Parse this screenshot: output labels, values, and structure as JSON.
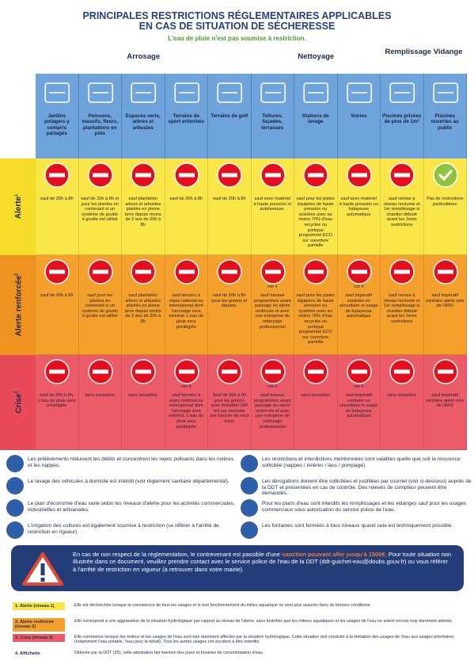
{
  "header": {
    "title_line1": "PRINCIPALES RESTRICTIONS RÉGLEMENTAIRES APPLICABLES",
    "title_line2": "EN CAS DE SITUATION DE SÉCHERESSE",
    "subtitle": "L'eau de pluie n'est pas soumise à restriction."
  },
  "groups": [
    {
      "label": "Arrosage",
      "span": [
        0,
        4
      ]
    },
    {
      "label": "Nettoyage",
      "span": [
        5,
        7
      ]
    },
    {
      "label": "Remplissage Vidange",
      "span": [
        8,
        9
      ]
    }
  ],
  "columns": [
    "Jardins potagers y compris partagés",
    "Pelouses, massifs, fleurs, plantations en pots",
    "Espaces verts, arbres et arbustes",
    "Terrains de sport enherbés",
    "Terrains de golf",
    "Toitures, façades, terrasses",
    "Stations de lavage",
    "Voiries",
    "Piscines privées de plus de 1m³",
    "Piscines ouvertes au public"
  ],
  "levels": [
    {
      "label": "Alerte",
      "sup": "1",
      "color": "#fbe64a",
      "side": "#f6dc2a",
      "cells": [
        {
          "status": "forbidden",
          "text": "sauf de 20h à 8h"
        },
        {
          "status": "forbidden",
          "text": "sauf de 20h à 8h et pour les plantes en contenant si un système de goutte à goutte est utilisé"
        },
        {
          "status": "forbidden",
          "text": "sauf plantation arbres et arbustes plantés en pleine terre depuis moins de 2 ans de 20h à 8h"
        },
        {
          "status": "forbidden",
          "text": "sauf de 20h à 8h"
        },
        {
          "status": "forbidden",
          "text": "sauf de 20h à 8h"
        },
        {
          "status": "forbidden",
          "text": "sauf avec matériel à haute pression et autolaveuse."
        },
        {
          "status": "forbidden",
          "text": "sauf pour les pistes équipées de haute pression ou système avec au moins 70% d'eau recyclée ou portique programmé ECO sur ouverture partielle"
        },
        {
          "status": "forbidden",
          "text": "sauf avec matériel à haute pression ou balayeuse automatique"
        },
        {
          "status": "forbidden",
          "text": "sauf remise à niveau nocturne et 1er remplissage si chantier débuté avant les 1ères restrictions"
        },
        {
          "status": "allowed",
          "text": "Pas de restrictions particulières"
        }
      ]
    },
    {
      "label": "Alerte renforcée",
      "sup": "2",
      "color": "#f4a02c",
      "side": "#ef9220",
      "cells": [
        {
          "status": "forbidden",
          "text": "sauf de 20h à 8h"
        },
        {
          "status": "forbidden",
          "text": "sauf pour les plantes en contenant si un système de goutte à goutte est utilisé"
        },
        {
          "status": "forbidden",
          "text": "sauf plantation arbres et arbustes plantés en pleine terre depuis moins de 2 ans de 20h à 8h"
        },
        {
          "status": "forbidden",
          "text": "sauf terrains à enjeu national ou international dont l'arrosage sera minimal. L'eau de pluie sera privilégiée"
        },
        {
          "status": "forbidden",
          "text": "sauf de 20h à 8h pour les greens et départs."
        },
        {
          "status": "forbidden",
          "note": "voir 4",
          "text": "sauf travaux programmés avant passage en alerte renforcée et avec une entreprise de nettoyage professionnel"
        },
        {
          "status": "forbidden",
          "text": "sauf pour les pistes équipées de haute pression ou système avec au moins 70% d'eau recyclée ou portique programmé ECO sur ouverture partielle"
        },
        {
          "status": "forbidden",
          "note": "voir 4",
          "text": "sauf impératif sanitaire ou sécuritaire et usage de balayeuse automatique"
        },
        {
          "status": "forbidden",
          "text": "sauf remise à niveau nocturne et 1er remplissage si chantier débuté avant les 1ères restrictions"
        },
        {
          "status": "forbidden",
          "text": "sauf impératif sanitaire après avis de l'ARS"
        }
      ]
    },
    {
      "label": "Crise",
      "sup": "3",
      "color": "#ec5b68",
      "side": "#e84a5a",
      "cells": [
        {
          "status": "forbidden",
          "text": "sauf de 20h à 8h. L'eau de pluie sera privilégiée"
        },
        {
          "status": "forbidden",
          "text": "sans exception"
        },
        {
          "status": "forbidden",
          "text": "sans exception"
        },
        {
          "status": "forbidden",
          "note": "voir 4",
          "text": "sauf terrains à enjeu national ou international dont l'arrosage sera minimal. L'eau de pluie sera privilégiée"
        },
        {
          "status": "forbidden",
          "text": "Sauf de 20h à 8h pour les greens avec limitation 330 m3 par semaine par tranche de neuf trous"
        },
        {
          "status": "forbidden",
          "note": "voir 4",
          "text": "sauf travaux programmés avant passage en alerte renforcée et avec une entreprise de nettoyage professionnel"
        },
        {
          "status": "forbidden",
          "text": "sans exception"
        },
        {
          "status": "forbidden",
          "note": "voir 4",
          "text": "sauf impératif sanitaire ou sécuritaire et usage de balayeuse automatique"
        },
        {
          "status": "forbidden",
          "text": "sans exception"
        },
        {
          "status": "forbidden",
          "text": "sauf impératif sanitaire après avis de l'ARS"
        }
      ]
    }
  ],
  "notes_left": [
    "Les prélèvements réduisent les débits et concentrent les rejets polluants dans les rivières et les nappes.",
    "Le lavage des véhicules à domicile est interdit (voir règlement sanitaire départemental).",
    "Le plan d'économie d'eau varie selon les niveaux d'alerte pour les activités commerciales, industrielles et artisanales.",
    "L'irrigation des cultures est également soumise à restriction (se référer à l'arrêté de restriction en rigueur)."
  ],
  "notes_right": [
    "Les restrictions et interdictions mentionnées sont valables quelle que soit la ressource sollicitée (nappes / rivières / lacs / pompage).",
    "Les dérogations doivent être sollicitées et justifiées par courriel (voir ci-dessous) auprès de la DDT et présentées en cas de contrôle. Des relevés de compteur peuvent être demandés.",
    "Pour les plans d'eau sont interdits les remplissages et les vidanges sauf pour les usages commerciaux sous autorisation du service police de l'eau.",
    "Les fontaines sont fermées à tous niveaux quand cela est techniquement possible."
  ],
  "warning": {
    "before": "En cas de non respect de la réglementation, le contrevenant est passible d'une ",
    "highlight": "sanction pouvant aller jusqu'à 1500€.",
    "after": " Pour toute situation non illustrée dans ce document, veuillez prendre contact avec le service police de l'eau de la DDT (ddt-guichet-eau@doubs.gouv.fr) ou vous référer à l'arrêté de restriction en vigueur (à retrouver dans votre mairie)."
  },
  "legend": [
    {
      "label": "1. Alerte (niveau 1)",
      "color": "#fbe64a",
      "text": "Elle est déclenchée lorsque la coexistence de tous les usages et le bon fonctionnement du milieu aquatique ne sont plus assurés dans de bonnes conditions."
    },
    {
      "label": "2. Alerte renforcée (niveau 2)",
      "color": "#f4a02c",
      "text": "Elle correspond à une aggravation de la situation hydrologique par rapport au niveau de l'alerte, sans toutefois que les milieux aquatiques et les usages de l'eau ne soient encore trop durement atteints."
    },
    {
      "label": "3. Crise (niveau 3)",
      "color": "#ec5b68",
      "text": "Elle commence lorsque les milieux et les usages de l'eau sont très durement affectés par la situation hydrologique. Cette situation doit conduire à la limitation des usages de l'eau aux usages prioritaires (notamment l'eau potable, l'eau pour le bétail). Tous les autres usages ont vocation à être interdits."
    },
    {
      "label": "4. Affichette",
      "color": null,
      "text": "Délivrée par la DDT (25), cette attestation fait mention des jours et horaires de consommation d'eau."
    }
  ]
}
